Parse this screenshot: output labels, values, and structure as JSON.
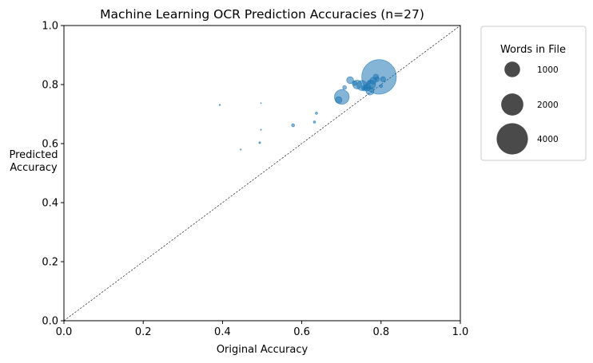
{
  "chart_data": {
    "type": "scatter",
    "title": "Machine Learning OCR Prediction Accuracies (n=27)",
    "xlabel": "Original Accuracy",
    "ylabel_lines": [
      "Predicted",
      "Accuracy"
    ],
    "xlim": [
      0,
      1
    ],
    "ylim": [
      0,
      1
    ],
    "xticks": [
      "0.0",
      "0.2",
      "0.4",
      "0.6",
      "0.8",
      "1.0"
    ],
    "yticks": [
      "0.0",
      "0.2",
      "0.4",
      "0.6",
      "0.8",
      "1.0"
    ],
    "grid": false,
    "reference_line": "y = x (dashed)",
    "point_color": "#1f77b4",
    "point_alpha": 0.55,
    "size_encoding": "Words in File",
    "points": [
      {
        "x": 0.393,
        "y": 0.731,
        "words": 8
      },
      {
        "x": 0.497,
        "y": 0.737,
        "words": 1
      },
      {
        "x": 0.497,
        "y": 0.647,
        "words": 5
      },
      {
        "x": 0.446,
        "y": 0.58,
        "words": 6
      },
      {
        "x": 0.494,
        "y": 0.603,
        "words": 14
      },
      {
        "x": 0.578,
        "y": 0.662,
        "words": 40
      },
      {
        "x": 0.637,
        "y": 0.703,
        "words": 22
      },
      {
        "x": 0.632,
        "y": 0.673,
        "words": 22
      },
      {
        "x": 0.693,
        "y": 0.748,
        "words": 180
      },
      {
        "x": 0.701,
        "y": 0.758,
        "words": 890
      },
      {
        "x": 0.708,
        "y": 0.79,
        "words": 60
      },
      {
        "x": 0.722,
        "y": 0.815,
        "words": 200
      },
      {
        "x": 0.733,
        "y": 0.805,
        "words": 90
      },
      {
        "x": 0.74,
        "y": 0.8,
        "words": 320
      },
      {
        "x": 0.752,
        "y": 0.797,
        "words": 420
      },
      {
        "x": 0.758,
        "y": 0.788,
        "words": 140
      },
      {
        "x": 0.765,
        "y": 0.79,
        "words": 200
      },
      {
        "x": 0.772,
        "y": 0.778,
        "words": 260
      },
      {
        "x": 0.775,
        "y": 0.8,
        "words": 320
      },
      {
        "x": 0.78,
        "y": 0.813,
        "words": 180
      },
      {
        "x": 0.787,
        "y": 0.826,
        "words": 120
      },
      {
        "x": 0.79,
        "y": 0.818,
        "words": 90
      },
      {
        "x": 0.795,
        "y": 0.826,
        "words": 4900
      },
      {
        "x": 0.8,
        "y": 0.795,
        "words": 40
      },
      {
        "x": 0.805,
        "y": 0.818,
        "words": 110
      },
      {
        "x": 0.757,
        "y": 0.787,
        "words": 30
      },
      {
        "x": 0.77,
        "y": 0.808,
        "words": 50
      }
    ],
    "legend": {
      "title": "Words in File",
      "placement": "outside-right-top",
      "color": "#4a4a4a",
      "entries": [
        {
          "label": "1000",
          "words": 1000
        },
        {
          "label": "2000",
          "words": 2000
        },
        {
          "label": "4000",
          "words": 4000
        }
      ]
    }
  }
}
